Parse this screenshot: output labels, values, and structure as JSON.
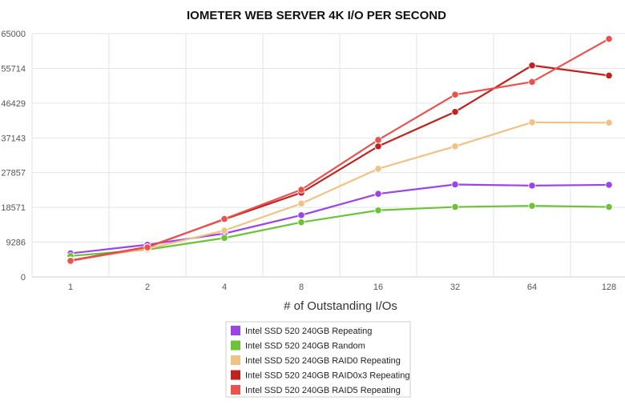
{
  "chart_data": {
    "type": "line",
    "title": "IOMETER WEB SERVER 4K I/O PER SECOND",
    "xlabel": "# of Outstanding I/Os",
    "ylabel": "",
    "x": [
      "1",
      "2",
      "4",
      "8",
      "16",
      "32",
      "64",
      "128"
    ],
    "ylim": [
      0,
      65000
    ],
    "yticks": [
      "0",
      "9286",
      "18571",
      "27857",
      "37143",
      "46429",
      "55714",
      "65000"
    ],
    "grid": true,
    "legend_position": "bottom-center",
    "series": [
      {
        "name": "Intel SSD 520 240GB Repeating",
        "color": "#9b45e6",
        "values": [
          6300,
          8600,
          11600,
          16500,
          22200,
          24700,
          24400,
          24600
        ]
      },
      {
        "name": "Intel SSD 520 240GB Random",
        "color": "#6cc33a",
        "values": [
          5600,
          7300,
          10400,
          14600,
          17800,
          18700,
          19000,
          18700
        ]
      },
      {
        "name": "Intel SSD 520 240GB RAID0 Repeating",
        "color": "#efc286",
        "values": [
          4500,
          7500,
          12400,
          19600,
          28900,
          34900,
          41300,
          41200
        ]
      },
      {
        "name": "Intel SSD 520 240GB RAID0x3 Repeating",
        "color": "#c0231f",
        "values": [
          4400,
          8000,
          15400,
          22500,
          34900,
          44100,
          56500,
          53800
        ]
      },
      {
        "name": "Intel SSD 520 240GB RAID5 Repeating",
        "color": "#e9524f",
        "values": [
          4300,
          7900,
          15500,
          23300,
          36600,
          48700,
          52100,
          63600
        ]
      }
    ]
  }
}
